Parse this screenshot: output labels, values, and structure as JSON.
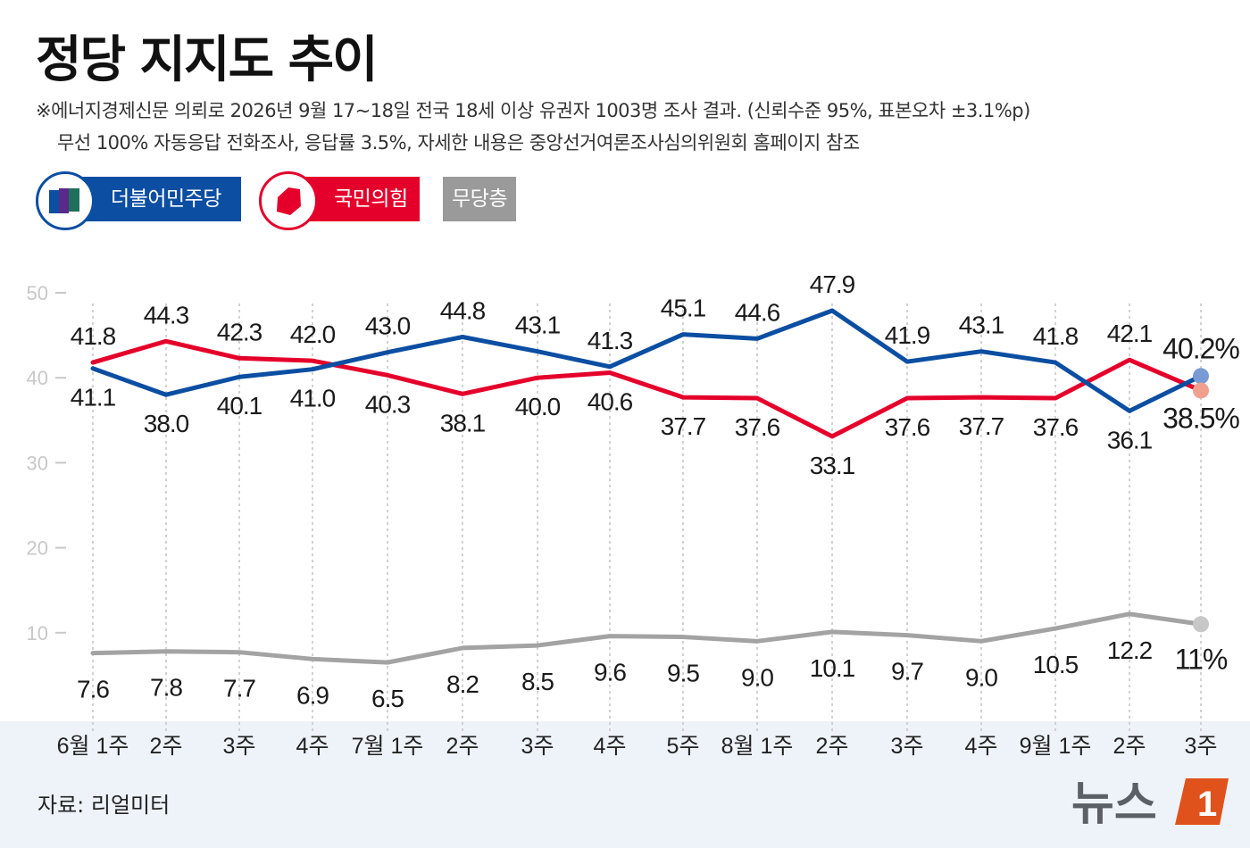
{
  "title": "정당 지지도 추이",
  "notes": [
    "※에너지경제신문 의뢰로 2026년 9월 17~18일 전국 18세 이상 유권자 1003명 조사 결과. (신뢰수준 95%, 표본오차 ±3.1%p)",
    "무선 100% 자동응답 전화조사, 응답률 3.5%, 자세한 내용은 중앙선거여론조사심의위원회 홈페이지 참조"
  ],
  "legend": [
    {
      "label": "더불어민주당",
      "color": "#0b4ea2",
      "icon": "democratic-party-logo-icon"
    },
    {
      "label": "국민의힘",
      "color": "#e5002b",
      "icon": "people-power-party-logo-icon"
    },
    {
      "label": "무당층",
      "color": "#9a9a9a"
    }
  ],
  "source": "자료: 리얼미터",
  "logo": {
    "text": "뉴스",
    "mark": "1",
    "colors": {
      "text": "#5b5f66",
      "mark": "#e0521b"
    }
  },
  "chart_data": {
    "type": "line",
    "categories": [
      "6월 1주",
      "2주",
      "3주",
      "4주",
      "7월 1주",
      "2주",
      "3주",
      "4주",
      "5주",
      "8월 1주",
      "2주",
      "3주",
      "4주",
      "9월 1주",
      "2주",
      "3주"
    ],
    "yticks": [
      "10",
      "20",
      "30",
      "40",
      "50"
    ],
    "ylim": [
      0,
      50
    ],
    "series": [
      {
        "name": "더불어민주당",
        "color": "#0b4ea2",
        "values": [
          41.1,
          38.0,
          40.1,
          41.0,
          43.0,
          44.8,
          43.1,
          41.3,
          45.1,
          44.6,
          47.9,
          41.9,
          43.1,
          41.8,
          36.1,
          40.2
        ],
        "labels": [
          "41.1",
          "38.0",
          "40.1",
          "41.0",
          "43.0",
          "44.8",
          "43.1",
          "41.3",
          "45.1",
          "44.6",
          "47.9",
          "41.9",
          "43.1",
          "41.8",
          "36.1",
          "40.2%"
        ],
        "label_pos": [
          "below",
          "below",
          "below",
          "below",
          "above",
          "above",
          "above",
          "above",
          "above",
          "above",
          "above",
          "above",
          "above",
          "above",
          "below",
          "above"
        ]
      },
      {
        "name": "국민의힘",
        "color": "#e5002b",
        "values": [
          41.8,
          44.3,
          42.3,
          42.0,
          40.3,
          38.1,
          40.0,
          40.6,
          37.7,
          37.6,
          33.1,
          37.6,
          37.7,
          37.6,
          42.1,
          38.5
        ],
        "labels": [
          "41.8",
          "44.3",
          "42.3",
          "42.0",
          "40.3",
          "38.1",
          "40.0",
          "40.6",
          "37.7",
          "37.6",
          "33.1",
          "37.6",
          "37.7",
          "37.6",
          "42.1",
          "38.5%"
        ],
        "label_pos": [
          "above",
          "above",
          "above",
          "above",
          "below",
          "below",
          "below",
          "below",
          "below",
          "below",
          "below",
          "below",
          "below",
          "below",
          "above",
          "below"
        ]
      },
      {
        "name": "무당층",
        "color": "#a3a3a3",
        "values": [
          7.6,
          7.8,
          7.7,
          6.9,
          6.5,
          8.2,
          8.5,
          9.6,
          9.5,
          9.0,
          10.1,
          9.7,
          9.0,
          10.5,
          12.2,
          11.0
        ],
        "labels": [
          "7.6",
          "7.8",
          "7.7",
          "6.9",
          "6.5",
          "8.2",
          "8.5",
          "9.6",
          "9.5",
          "9.0",
          "10.1",
          "9.7",
          "9.0",
          "10.5",
          "12.2",
          "11%"
        ],
        "label_pos": [
          "below",
          "below",
          "below",
          "below",
          "below",
          "below",
          "below",
          "below",
          "below",
          "below",
          "below",
          "below",
          "below",
          "below",
          "below",
          "below"
        ]
      }
    ]
  }
}
